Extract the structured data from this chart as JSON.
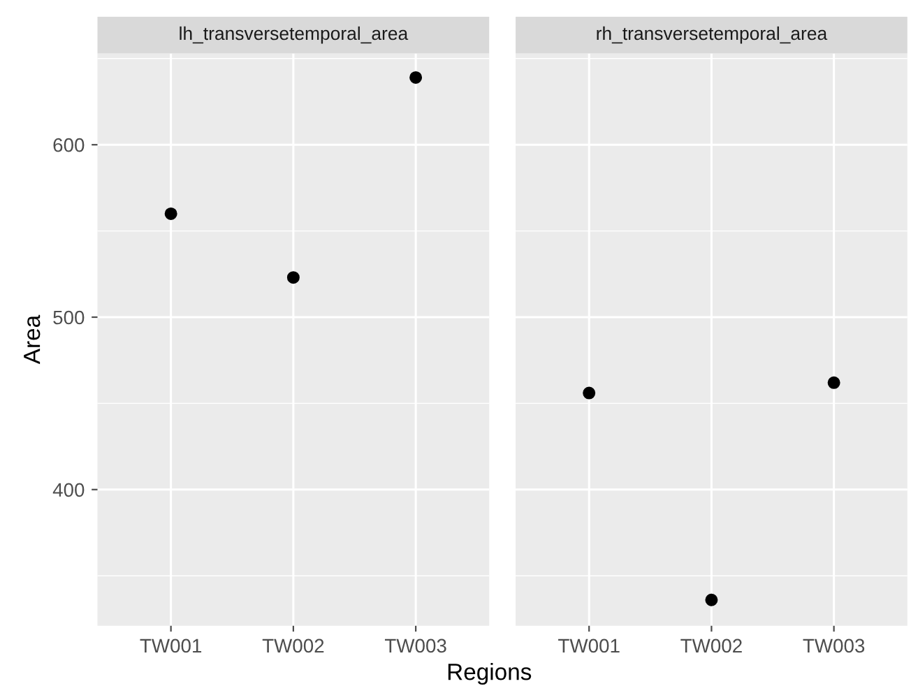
{
  "chart_data": [
    {
      "type": "scatter",
      "title": "lh_transversetemporal_area",
      "xlabel": "Regions",
      "ylabel": "Area",
      "categories": [
        "TW001",
        "TW002",
        "TW003"
      ],
      "series": [
        {
          "color": "#000000",
          "values": [
            560,
            523,
            639
          ]
        }
      ],
      "ylim": [
        321,
        653
      ],
      "yticks": [
        400,
        500,
        600
      ],
      "grid": true,
      "marker": "circle"
    },
    {
      "type": "scatter",
      "title": "rh_transversetemporal_area",
      "categories": [
        "TW001",
        "TW002",
        "TW003"
      ],
      "series": [
        {
          "color": "#000000",
          "values": [
            456,
            336,
            462
          ]
        }
      ],
      "ylim": [
        321,
        653
      ],
      "yticks": [
        400,
        500,
        600
      ],
      "grid": true,
      "marker": "circle",
      "tick_labels": "x"
    }
  ]
}
